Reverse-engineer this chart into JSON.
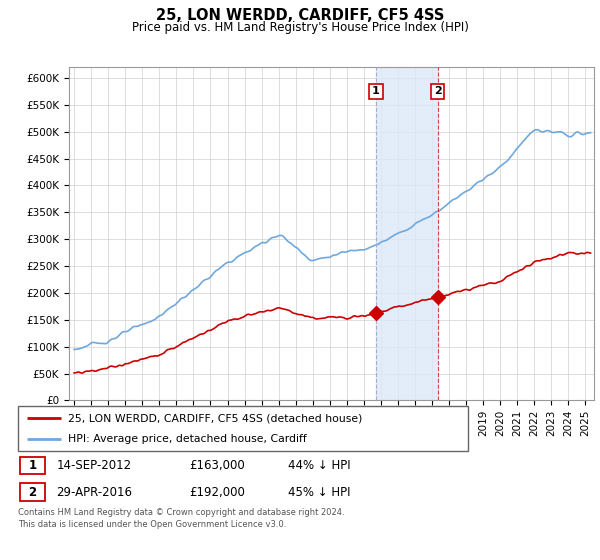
{
  "title": "25, LON WERDD, CARDIFF, CF5 4SS",
  "subtitle": "Price paid vs. HM Land Registry's House Price Index (HPI)",
  "hpi_color": "#6fa8dc",
  "price_color": "#cc0000",
  "vline_color": "#aaaacc",
  "shade_color": "#dce8f8",
  "ylim": [
    0,
    620000
  ],
  "yticks": [
    0,
    50000,
    100000,
    150000,
    200000,
    250000,
    300000,
    350000,
    400000,
    450000,
    500000,
    550000,
    600000
  ],
  "xlim_start": 1994.7,
  "xlim_end": 2025.5,
  "sale1_date": 2012.71,
  "sale1_price": 163000,
  "sale1_label": "1",
  "sale2_date": 2016.33,
  "sale2_price": 192000,
  "sale2_label": "2",
  "legend_line1": "25, LON WERDD, CARDIFF, CF5 4SS (detached house)",
  "legend_line2": "HPI: Average price, detached house, Cardiff",
  "table_row1": [
    "1",
    "14-SEP-2012",
    "£163,000",
    "44% ↓ HPI"
  ],
  "table_row2": [
    "2",
    "29-APR-2016",
    "£192,000",
    "45% ↓ HPI"
  ],
  "footnote": "Contains HM Land Registry data © Crown copyright and database right 2024.\nThis data is licensed under the Open Government Licence v3.0."
}
